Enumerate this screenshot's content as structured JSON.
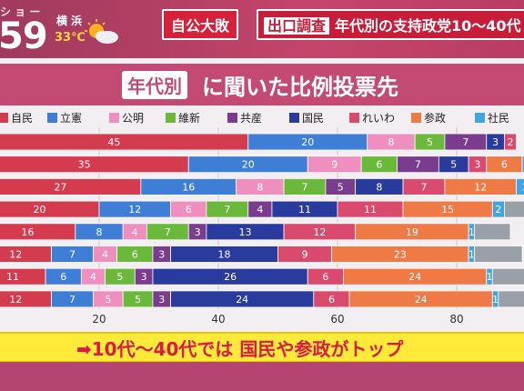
{
  "header": {
    "show_name": "シ ョ ー",
    "clock": "59",
    "city": "横 浜",
    "temperature": "33℃",
    "badge_left": "自公大敗",
    "badge_sub": "出口調査",
    "badge_main": "年代別の支持政党10〜40代"
  },
  "subtitle": {
    "chip": "年代別",
    "text": "に聞いた比例投票先"
  },
  "banner": {
    "text": "➡10代〜40代では 国民や参政がトップ"
  },
  "colors": {
    "自民": "#d43b4e",
    "立憲": "#3f7ed6",
    "公明": "#ee8fc0",
    "維新": "#6ab93a",
    "共産": "#7a3d8e",
    "国民": "#2a3b9e",
    "れいわ": "#d94a6e",
    "参政": "#ef7a45",
    "社民": "#41a6e0"
  },
  "chart_data": {
    "type": "bar",
    "orientation": "horizontal-stacked",
    "title": "年代別に聞いた比例投票先",
    "xlim": [
      0,
      100
    ],
    "xticks": [
      20,
      40,
      60,
      80
    ],
    "legend_placement": "top",
    "legend": [
      "自民",
      "立憲",
      "公明",
      "維新",
      "共産",
      "国民",
      "れいわ",
      "参政",
      "社民"
    ],
    "rows": [
      {
        "segments": [
          {
            "party": "自民",
            "value": 45
          },
          {
            "party": "立憲",
            "value": 20
          },
          {
            "party": "公明",
            "value": 8
          },
          {
            "party": "維新",
            "value": 5
          },
          {
            "party": "共産",
            "value": 7
          },
          {
            "party": "国民",
            "value": 3
          },
          {
            "party": "れいわ",
            "value": 2
          }
        ]
      },
      {
        "segments": [
          {
            "party": "自民",
            "value": 35
          },
          {
            "party": "立憲",
            "value": 20
          },
          {
            "party": "公明",
            "value": 9
          },
          {
            "party": "維新",
            "value": 6
          },
          {
            "party": "共産",
            "value": 7
          },
          {
            "party": "国民",
            "value": 5
          },
          {
            "party": "れいわ",
            "value": 3
          },
          {
            "party": "参政",
            "value": 6
          },
          {
            "party": "社民",
            "value": 3
          }
        ]
      },
      {
        "segments": [
          {
            "party": "自民",
            "value": 27
          },
          {
            "party": "立憲",
            "value": 16
          },
          {
            "party": "公明",
            "value": 8
          },
          {
            "party": "維新",
            "value": 7
          },
          {
            "party": "共産",
            "value": 5
          },
          {
            "party": "国民",
            "value": 8
          },
          {
            "party": "れいわ",
            "value": 7
          },
          {
            "party": "参政",
            "value": 12
          },
          {
            "party": "社民",
            "value": 3
          }
        ]
      },
      {
        "segments": [
          {
            "party": "自民",
            "value": 20
          },
          {
            "party": "立憲",
            "value": 12
          },
          {
            "party": "公明",
            "value": 6
          },
          {
            "party": "維新",
            "value": 7
          },
          {
            "party": "共産",
            "value": 4
          },
          {
            "party": "国民",
            "value": 11
          },
          {
            "party": "れいわ",
            "value": 11
          },
          {
            "party": "参政",
            "value": 15
          },
          {
            "party": "社民",
            "value": 2
          },
          {
            "party": "other",
            "value": 5
          }
        ]
      },
      {
        "segments": [
          {
            "party": "自民",
            "value": 16
          },
          {
            "party": "立憲",
            "value": 8
          },
          {
            "party": "公明",
            "value": 4
          },
          {
            "party": "維新",
            "value": 7
          },
          {
            "party": "共産",
            "value": 3
          },
          {
            "party": "国民",
            "value": 13
          },
          {
            "party": "れいわ",
            "value": 12
          },
          {
            "party": "参政",
            "value": 19
          },
          {
            "party": "社民",
            "value": 1
          },
          {
            "party": "other",
            "value": 6
          }
        ]
      },
      {
        "segments": [
          {
            "party": "自民",
            "value": 12
          },
          {
            "party": "立憲",
            "value": 7
          },
          {
            "party": "公明",
            "value": 4
          },
          {
            "party": "維新",
            "value": 6
          },
          {
            "party": "共産",
            "value": 3
          },
          {
            "party": "国民",
            "value": 18
          },
          {
            "party": "れいわ",
            "value": 9
          },
          {
            "party": "参政",
            "value": 23
          },
          {
            "party": "社民",
            "value": 1
          },
          {
            "party": "other",
            "value": 8
          }
        ]
      },
      {
        "segments": [
          {
            "party": "自民",
            "value": 11
          },
          {
            "party": "立憲",
            "value": 6
          },
          {
            "party": "公明",
            "value": 4
          },
          {
            "party": "維新",
            "value": 5
          },
          {
            "party": "共産",
            "value": 3
          },
          {
            "party": "国民",
            "value": 26
          },
          {
            "party": "れいわ",
            "value": 6
          },
          {
            "party": "参政",
            "value": 24
          },
          {
            "party": "社民",
            "value": 1
          },
          {
            "party": "other",
            "value": 7
          }
        ]
      },
      {
        "segments": [
          {
            "party": "自民",
            "value": 12
          },
          {
            "party": "立憲",
            "value": 7
          },
          {
            "party": "公明",
            "value": 5
          },
          {
            "party": "維新",
            "value": 5
          },
          {
            "party": "共産",
            "value": 3
          },
          {
            "party": "国民",
            "value": 24
          },
          {
            "party": "れいわ",
            "value": 6
          },
          {
            "party": "参政",
            "value": 24
          },
          {
            "party": "社民",
            "value": 1
          },
          {
            "party": "other",
            "value": 6
          }
        ]
      }
    ]
  }
}
